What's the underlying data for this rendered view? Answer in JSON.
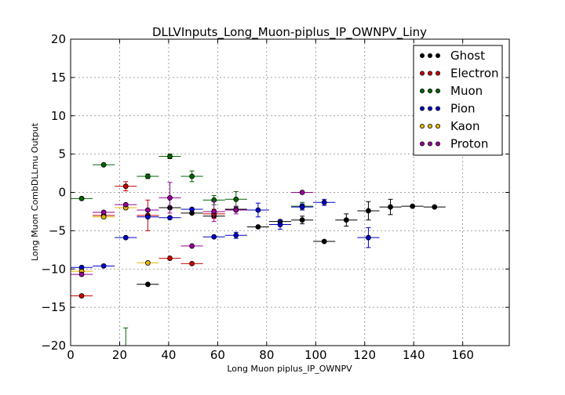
{
  "chart_data": {
    "type": "scatter",
    "title": "DLLVInputs_Long_Muon-piplus_IP_OWNPV_Liny",
    "xlabel": "Long Muon piplus_IP_OWNPV",
    "ylabel": "Long Muon CombDLLmu Output",
    "xlim": [
      0,
      179
    ],
    "ylim": [
      -20,
      20
    ],
    "xticks": [
      0,
      20,
      40,
      60,
      80,
      100,
      120,
      140,
      160
    ],
    "yticks": [
      -20,
      -15,
      -10,
      -5,
      0,
      5,
      10,
      15,
      20
    ],
    "grid": true,
    "legend_position": "top-right",
    "series": [
      {
        "name": "Ghost",
        "color": "#000000",
        "xerr": 4.5,
        "points": [
          {
            "x": 31.5,
            "y": -12.0,
            "e": 0
          },
          {
            "x": 40.5,
            "y": -2.0,
            "e": 0
          },
          {
            "x": 49.5,
            "y": -2.7,
            "e": 0
          },
          {
            "x": 58.5,
            "y": -3.1,
            "e": 0
          },
          {
            "x": 67.5,
            "y": -2.2,
            "e": 0
          },
          {
            "x": 76.5,
            "y": -4.5,
            "e": 0
          },
          {
            "x": 85.5,
            "y": -3.8,
            "e": 0
          },
          {
            "x": 94.5,
            "y": -3.6,
            "e": 0.5
          },
          {
            "x": 103.5,
            "y": -6.4,
            "e": 0
          },
          {
            "x": 112.5,
            "y": -3.6,
            "e": 0.8
          },
          {
            "x": 121.5,
            "y": -2.4,
            "e": 1.2
          },
          {
            "x": 130.5,
            "y": -1.9,
            "e": 1.0
          },
          {
            "x": 139.5,
            "y": -1.8,
            "e": 0
          },
          {
            "x": 148.5,
            "y": -1.9,
            "e": 0
          }
        ]
      },
      {
        "name": "Electron",
        "color": "#cc0000",
        "xerr": 4.5,
        "points": [
          {
            "x": 4.5,
            "y": -13.5,
            "e": 0
          },
          {
            "x": 13.5,
            "y": -3.0,
            "e": 0
          },
          {
            "x": 22.5,
            "y": 0.8,
            "e": 0.6
          },
          {
            "x": 31.5,
            "y": -3.0,
            "e": 2.0
          },
          {
            "x": 40.5,
            "y": -8.6,
            "e": 0
          },
          {
            "x": 49.5,
            "y": -9.3,
            "e": 0
          },
          {
            "x": 58.5,
            "y": -2.8,
            "e": 0.6
          }
        ]
      },
      {
        "name": "Muon",
        "color": "#006600",
        "xerr": 4.5,
        "points": [
          {
            "x": 4.5,
            "y": -0.8,
            "e": 0
          },
          {
            "x": 13.5,
            "y": 3.6,
            "e": 0
          },
          {
            "x": 22.5,
            "y": -20.0,
            "e": 2.3
          },
          {
            "x": 31.5,
            "y": 2.1,
            "e": 0.3
          },
          {
            "x": 40.5,
            "y": 4.7,
            "e": 0.3
          },
          {
            "x": 49.5,
            "y": 2.1,
            "e": 0.7
          },
          {
            "x": 58.5,
            "y": -1.0,
            "e": 0.6
          },
          {
            "x": 67.5,
            "y": -0.9,
            "e": 1.0
          },
          {
            "x": 94.5,
            "y": -1.8,
            "e": 0.5
          }
        ]
      },
      {
        "name": "Pion",
        "color": "#0000cc",
        "xerr": 4.5,
        "points": [
          {
            "x": 4.5,
            "y": -9.8,
            "e": 0
          },
          {
            "x": 13.5,
            "y": -9.6,
            "e": 0
          },
          {
            "x": 22.5,
            "y": -5.9,
            "e": 0
          },
          {
            "x": 31.5,
            "y": -3.2,
            "e": 0
          },
          {
            "x": 40.5,
            "y": -3.3,
            "e": 0
          },
          {
            "x": 49.5,
            "y": -2.2,
            "e": 0
          },
          {
            "x": 58.5,
            "y": -5.8,
            "e": 0
          },
          {
            "x": 67.5,
            "y": -5.6,
            "e": 0.4
          },
          {
            "x": 76.5,
            "y": -2.3,
            "e": 0.9
          },
          {
            "x": 85.5,
            "y": -4.2,
            "e": 0.6
          },
          {
            "x": 94.5,
            "y": -1.9,
            "e": 0.4
          },
          {
            "x": 103.5,
            "y": -1.3,
            "e": 0.4
          },
          {
            "x": 121.5,
            "y": -5.9,
            "e": 1.3
          }
        ]
      },
      {
        "name": "Kaon",
        "color": "#e6b800",
        "xerr": 4.5,
        "points": [
          {
            "x": 4.5,
            "y": -10.3,
            "e": 0
          },
          {
            "x": 13.5,
            "y": -3.2,
            "e": 0
          },
          {
            "x": 22.5,
            "y": -2.0,
            "e": 0
          },
          {
            "x": 31.5,
            "y": -9.2,
            "e": 0
          }
        ]
      },
      {
        "name": "Proton",
        "color": "#990099",
        "xerr": 4.5,
        "points": [
          {
            "x": 4.5,
            "y": -10.7,
            "e": 0
          },
          {
            "x": 13.5,
            "y": -2.6,
            "e": 0
          },
          {
            "x": 22.5,
            "y": -1.6,
            "e": 0
          },
          {
            "x": 31.5,
            "y": -2.3,
            "e": 0
          },
          {
            "x": 40.5,
            "y": -0.7,
            "e": 2.0
          },
          {
            "x": 49.5,
            "y": -7.0,
            "e": 0
          },
          {
            "x": 58.5,
            "y": -2.5,
            "e": 1.3
          },
          {
            "x": 67.5,
            "y": -2.3,
            "e": 0.5
          },
          {
            "x": 94.5,
            "y": 0.0,
            "e": 0
          }
        ]
      }
    ]
  }
}
